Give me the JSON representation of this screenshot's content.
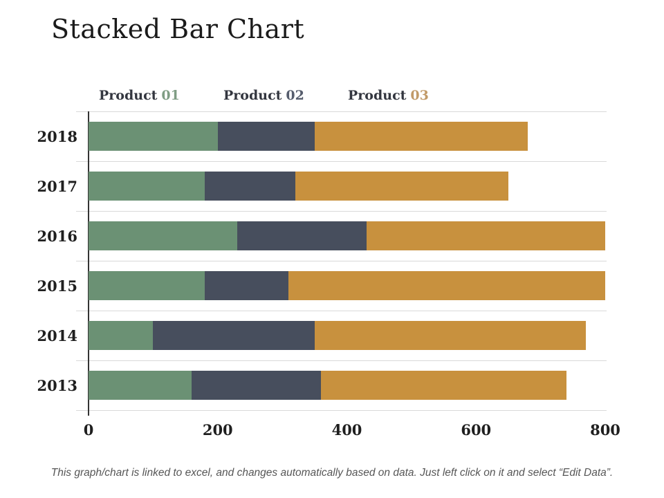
{
  "title": "Stacked Bar Chart",
  "footnote": "This graph/chart is linked to excel, and changes automatically based on data. Just left click on it and select “Edit Data”.",
  "legend": {
    "items": [
      {
        "text": "Product",
        "number": "01",
        "number_color": "#7F9D84"
      },
      {
        "text": "Product",
        "number": "02",
        "number_color": "#565D6D"
      },
      {
        "text": "Product",
        "number": "03",
        "number_color": "#C19A68"
      }
    ],
    "text_color": "#33363F"
  },
  "colors": {
    "series_green": "#6B9174",
    "series_navy": "#474E5D",
    "series_orange": "#C8913E",
    "gridline": "#D9D9D9",
    "axis_line": "#333333",
    "title_text": "#1B1B1B",
    "axis_text": "#1F1F1F",
    "footnote_text": "#565656",
    "background": "#FFFFFF"
  },
  "chart_data": {
    "type": "bar",
    "orientation": "horizontal",
    "stacked": true,
    "title": "Stacked Bar Chart",
    "categories": [
      "2018",
      "2017",
      "2016",
      "2015",
      "2014",
      "2013"
    ],
    "series": [
      {
        "name": "Product 01",
        "color": "#6B9174",
        "values": [
          200,
          180,
          230,
          180,
          100,
          160
        ]
      },
      {
        "name": "Product 02",
        "color": "#474E5D",
        "values": [
          150,
          140,
          200,
          130,
          250,
          200
        ]
      },
      {
        "name": "Product 03",
        "color": "#C8913E",
        "values": [
          330,
          330,
          370,
          490,
          420,
          380
        ]
      }
    ],
    "totals": [
      680,
      650,
      800,
      800,
      770,
      740
    ],
    "x_axis": {
      "min": 0,
      "max": 800,
      "tick_interval": 200,
      "tick_labels": [
        "0",
        "200",
        "400",
        "600",
        "800"
      ]
    },
    "y_axis_labels": [
      "2018",
      "2017",
      "2016",
      "2015",
      "2014",
      "2013"
    ],
    "legend_position": "top",
    "grid": "horizontal category-boundary lines only"
  }
}
